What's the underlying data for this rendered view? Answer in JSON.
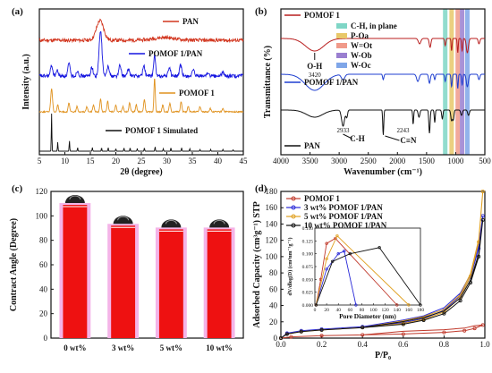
{
  "chart_data": [
    {
      "id": "a",
      "panel_label": "(a)",
      "type": "line",
      "xlabel": "2θ (degree)",
      "ylabel": "Intensity (a.u.)",
      "xlim": [
        5,
        45
      ],
      "xticks": [
        5,
        10,
        15,
        20,
        25,
        30,
        35,
        40,
        45
      ],
      "series": [
        {
          "name": "PAN",
          "color": "#d2361f",
          "offset": 128,
          "peaks": [
            [
              16.9,
              22,
              1.0
            ],
            [
              29.5,
              3,
              3
            ]
          ],
          "noise": 4
        },
        {
          "name": "POMOF 1/PAN",
          "color": "#1515e0",
          "offset": 88,
          "peaks": [
            [
              7.4,
              12,
              0.3
            ],
            [
              8.5,
              6,
              0.3
            ],
            [
              10.8,
              14,
              0.3
            ],
            [
              12.5,
              6,
              0.3
            ],
            [
              15.3,
              10,
              0.3
            ],
            [
              17.0,
              50,
              0.4
            ],
            [
              18.5,
              12,
              0.3
            ],
            [
              20.8,
              12,
              0.3
            ],
            [
              22.5,
              8,
              0.3
            ],
            [
              25.5,
              12,
              0.3
            ],
            [
              27.6,
              24,
              0.25
            ],
            [
              30.5,
              10,
              0.3
            ],
            [
              32.7,
              12,
              0.3
            ],
            [
              35.2,
              6,
              0.3
            ],
            [
              38.0,
              4,
              0.3
            ],
            [
              41.0,
              4,
              0.3
            ]
          ],
          "noise": 4
        },
        {
          "name": "POMOF 1",
          "color": "#e0921f",
          "offset": 48,
          "peaks": [
            [
              7.4,
              26,
              0.25
            ],
            [
              8.6,
              8,
              0.2
            ],
            [
              10.8,
              10,
              0.2
            ],
            [
              12.4,
              6,
              0.2
            ],
            [
              14.3,
              6,
              0.2
            ],
            [
              15.6,
              8,
              0.2
            ],
            [
              17.0,
              14,
              0.2
            ],
            [
              18.4,
              12,
              0.2
            ],
            [
              20.0,
              8,
              0.2
            ],
            [
              21.4,
              6,
              0.2
            ],
            [
              22.7,
              10,
              0.2
            ],
            [
              24.0,
              8,
              0.2
            ],
            [
              25.6,
              14,
              0.2
            ],
            [
              27.6,
              38,
              0.18
            ],
            [
              29.2,
              8,
              0.2
            ],
            [
              30.6,
              10,
              0.2
            ],
            [
              32.8,
              12,
              0.2
            ],
            [
              34.2,
              6,
              0.2
            ],
            [
              36.5,
              6,
              0.2
            ],
            [
              38.5,
              4,
              0.2
            ],
            [
              41.0,
              4,
              0.2
            ]
          ],
          "noise": 1.5
        },
        {
          "name": "POMOF 1 Simulated",
          "color": "#111111",
          "offset": 4,
          "peaks": [
            [
              7.4,
              42,
              0.08
            ],
            [
              8.6,
              10,
              0.08
            ],
            [
              10.9,
              12,
              0.08
            ],
            [
              12.5,
              4,
              0.08
            ],
            [
              15.4,
              4,
              0.08
            ],
            [
              17.2,
              4,
              0.08
            ],
            [
              18.5,
              4,
              0.08
            ],
            [
              20.0,
              3,
              0.08
            ],
            [
              21.6,
              4,
              0.08
            ],
            [
              22.8,
              4,
              0.08
            ],
            [
              24.2,
              3,
              0.08
            ],
            [
              25.6,
              4,
              0.08
            ],
            [
              27.7,
              5,
              0.08
            ],
            [
              29.3,
              3,
              0.08
            ],
            [
              30.8,
              4,
              0.08
            ],
            [
              32.9,
              4,
              0.08
            ],
            [
              34.5,
              3,
              0.08
            ],
            [
              36.5,
              2,
              0.08
            ],
            [
              38.6,
              2,
              0.08
            ],
            [
              41.0,
              2,
              0.08
            ],
            [
              43.0,
              1.5,
              0.08
            ]
          ],
          "noise": 0
        }
      ]
    },
    {
      "id": "b",
      "panel_label": "(b)",
      "type": "line",
      "xlabel": "Wavenumber (cm⁻¹)",
      "ylabel": "Transmittance (%)",
      "xlim": [
        4000,
        500
      ],
      "xticks": [
        4000,
        3500,
        3000,
        2500,
        2000,
        1500,
        1000,
        500
      ],
      "bands": [
        {
          "name": "C-H, in plane",
          "color": "#7fd6c6",
          "x": 1180
        },
        {
          "name": "P-Oa",
          "color": "#e8c86a",
          "x": 1070
        },
        {
          "name": "W=Ot",
          "color": "#f09a8a",
          "x": 965
        },
        {
          "name": "W-Ob",
          "color": "#9a7fd0",
          "x": 890
        },
        {
          "name": "W-Oc",
          "color": "#7fa6e8",
          "x": 800
        }
      ],
      "annotations": [
        {
          "text": "O-H",
          "sub": "3420",
          "x": 3420,
          "series": "POMOF 1"
        },
        {
          "text": "C-H",
          "sub": "2933",
          "x": 2933,
          "series": "PAN"
        },
        {
          "text": "C≡N",
          "sub": "2243",
          "x": 2243,
          "series": "PAN"
        }
      ],
      "series": [
        {
          "name": "POMOF 1",
          "color": "#b81e1e",
          "offset": 104,
          "dips": [
            [
              3420,
              14,
              220
            ],
            [
              1620,
              6,
              30
            ],
            [
              1440,
              10,
              20
            ],
            [
              1180,
              8,
              15
            ],
            [
              1070,
              14,
              12
            ],
            [
              965,
              16,
              12
            ],
            [
              890,
              14,
              14
            ],
            [
              800,
              16,
              25
            ],
            [
              600,
              6,
              20
            ]
          ]
        },
        {
          "name": "POMOF 1/PAN",
          "color": "#1f3fd0",
          "offset": 64,
          "dips": [
            [
              3420,
              18,
              230
            ],
            [
              2933,
              6,
              40
            ],
            [
              2243,
              6,
              15
            ],
            [
              1650,
              8,
              30
            ],
            [
              1450,
              10,
              20
            ],
            [
              1360,
              6,
              15
            ],
            [
              1180,
              8,
              15
            ],
            [
              1070,
              14,
              14
            ],
            [
              965,
              16,
              12
            ],
            [
              890,
              12,
              14
            ],
            [
              800,
              14,
              25
            ],
            [
              600,
              6,
              20
            ]
          ]
        },
        {
          "name": "PAN",
          "color": "#111111",
          "offset": 24,
          "dips": [
            [
              3420,
              8,
              200
            ],
            [
              2933,
              18,
              35
            ],
            [
              2870,
              8,
              20
            ],
            [
              2243,
              28,
              12
            ],
            [
              1730,
              16,
              12
            ],
            [
              1630,
              8,
              20
            ],
            [
              1450,
              26,
              15
            ],
            [
              1360,
              14,
              12
            ],
            [
              1230,
              10,
              15
            ],
            [
              1070,
              12,
              20
            ],
            [
              1040,
              10,
              15
            ],
            [
              900,
              6,
              20
            ],
            [
              780,
              6,
              20
            ]
          ]
        }
      ]
    },
    {
      "id": "c",
      "panel_label": "(c)",
      "type": "bar",
      "ylabel": "Contract Angle (Degree)",
      "categories": [
        "0 wt%",
        "3 wt%",
        "5 wt%",
        "10 wt%"
      ],
      "values": [
        109,
        92,
        89,
        89
      ],
      "ylim": [
        0,
        120
      ],
      "yticks": [
        0,
        20,
        40,
        60,
        80,
        100,
        120
      ],
      "bar_color": "#ee1111",
      "shadow_color": "#f4b4e8"
    },
    {
      "id": "d",
      "panel_label": "(d)",
      "type": "line",
      "xlabel": "P/P₀",
      "ylabel": "Adsorbed Capacity (cm³g⁻¹) STP",
      "xlim": [
        0,
        1.0
      ],
      "ylim": [
        0,
        180
      ],
      "xticks": [
        0.0,
        0.2,
        0.4,
        0.6,
        0.8,
        1.0
      ],
      "yticks": [
        0,
        20,
        40,
        60,
        80,
        100,
        120,
        140,
        160,
        180
      ],
      "series": [
        {
          "name": "POMOF 1",
          "color": "#c0392b",
          "points": [
            [
              0.0,
              0
            ],
            [
              0.05,
              1.5
            ],
            [
              0.2,
              3
            ],
            [
              0.4,
              4
            ],
            [
              0.6,
              5
            ],
            [
              0.8,
              7
            ],
            [
              0.9,
              9
            ],
            [
              0.95,
              12
            ],
            [
              0.99,
              16
            ]
          ]
        },
        {
          "name": "3 wt% POMOF 1/PAN",
          "color": "#2a2ad8",
          "points": [
            [
              0.0,
              0
            ],
            [
              0.03,
              6
            ],
            [
              0.1,
              9
            ],
            [
              0.2,
              11
            ],
            [
              0.4,
              14
            ],
            [
              0.6,
              19
            ],
            [
              0.7,
              24
            ],
            [
              0.8,
              34
            ],
            [
              0.88,
              52
            ],
            [
              0.93,
              75
            ],
            [
              0.97,
              110
            ],
            [
              0.99,
              150
            ]
          ]
        },
        {
          "name": "5 wt% POMOF 1/PAN",
          "color": "#e0a020",
          "points": [
            [
              0.0,
              0
            ],
            [
              0.03,
              5
            ],
            [
              0.1,
              8
            ],
            [
              0.2,
              10
            ],
            [
              0.4,
              13
            ],
            [
              0.6,
              18
            ],
            [
              0.7,
              23
            ],
            [
              0.8,
              32
            ],
            [
              0.88,
              50
            ],
            [
              0.93,
              76
            ],
            [
              0.97,
              118
            ],
            [
              0.99,
              180
            ]
          ]
        },
        {
          "name": "10 wt% POMOF 1/PAN",
          "color": "#111111",
          "points": [
            [
              0.0,
              0
            ],
            [
              0.03,
              5
            ],
            [
              0.1,
              8
            ],
            [
              0.2,
              10
            ],
            [
              0.4,
              13
            ],
            [
              0.6,
              17
            ],
            [
              0.7,
              22
            ],
            [
              0.8,
              30
            ],
            [
              0.88,
              46
            ],
            [
              0.93,
              68
            ],
            [
              0.97,
              100
            ],
            [
              0.99,
              145
            ]
          ]
        }
      ],
      "inset": {
        "xlabel": "Pore Diameter (nm)",
        "ylabel": "dV/dlog(D) (cm³nm⁻¹g⁻¹)",
        "xlim": [
          0,
          180
        ],
        "ylim": [
          0,
          0.15
        ],
        "xticks": [
          0,
          20,
          40,
          60,
          80,
          100,
          120,
          140,
          160,
          180
        ],
        "yticks": [
          0.0,
          0.025,
          0.05,
          0.075,
          0.1,
          0.125,
          0.15
        ],
        "series": [
          {
            "name": "POMOF 1",
            "color": "#c0392b",
            "points": [
              [
                2,
                0
              ],
              [
                10,
                0.05
              ],
              [
                20,
                0.12
              ],
              [
                35,
                0.13
              ],
              [
                140,
                0.0
              ]
            ]
          },
          {
            "name": "3 wt% POMOF 1/PAN",
            "color": "#2a2ad8",
            "points": [
              [
                2,
                0
              ],
              [
                20,
                0.07
              ],
              [
                40,
                0.1
              ],
              [
                50,
                0.105
              ],
              [
                70,
                0.0
              ]
            ]
          },
          {
            "name": "5 wt% POMOF 1/PAN",
            "color": "#e0a020",
            "points": [
              [
                2,
                0
              ],
              [
                20,
                0.09
              ],
              [
                38,
                0.135
              ],
              [
                160,
                0.0
              ]
            ]
          },
          {
            "name": "10 wt% POMOF 1/PAN",
            "color": "#111111",
            "points": [
              [
                2,
                0
              ],
              [
                30,
                0.085
              ],
              [
                60,
                0.1
              ],
              [
                110,
                0.112
              ],
              [
                180,
                0.0
              ]
            ]
          }
        ]
      }
    }
  ]
}
